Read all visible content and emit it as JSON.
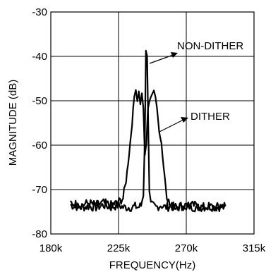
{
  "chart_data": {
    "type": "line",
    "title": "",
    "xlabel": "FREQUENCY(Hz)",
    "ylabel": "MAGNITUDE (dB)",
    "xlim": [
      180000,
      315000
    ],
    "ylim": [
      -80,
      -30
    ],
    "x_ticks": [
      180000,
      225000,
      270000,
      315000
    ],
    "x_tick_labels": [
      "180k",
      "225k",
      "270k",
      "315k"
    ],
    "y_ticks": [
      -80,
      -70,
      -60,
      -50,
      -40,
      -30
    ],
    "y_tick_labels": [
      "-80",
      "-70",
      "-60",
      "-50",
      "-40",
      "-30"
    ],
    "grid": true,
    "legend": "none",
    "series": [
      {
        "x": [
          193000,
          200000,
          205000,
          210000,
          215000,
          220000,
          225000,
          228000,
          231000,
          234000,
          236000,
          238000,
          240000,
          241500,
          242500,
          243200,
          244000,
          244800,
          245500,
          246500,
          248000,
          250000,
          253000,
          256000,
          260000,
          265000,
          270000,
          275000,
          280000,
          285000,
          290000,
          296000
        ],
        "y": [
          -73.5,
          -74,
          -73.8,
          -74,
          -73.5,
          -74,
          -73.5,
          -74,
          -74,
          -74,
          -73.8,
          -74,
          -73.6,
          -71,
          -58,
          -39,
          -39.5,
          -56,
          -71,
          -73.5,
          -73.7,
          -74,
          -73.5,
          -74,
          -73.8,
          -74,
          -73.5,
          -74,
          -74,
          -73.8,
          -74,
          -73.8
        ]
      },
      {
        "x": [
          193000,
          200000,
          205000,
          210000,
          215000,
          220000,
          224000,
          228000,
          230000,
          232000,
          234000,
          235500,
          236500,
          237500,
          238500,
          239500,
          240500,
          241500,
          242500,
          243500,
          244500,
          245500,
          246500,
          247500,
          248500,
          249500,
          250500,
          252000,
          253500,
          255000,
          257000,
          259000,
          262000,
          265000,
          270000,
          275000,
          280000,
          285000,
          290000,
          296000
        ],
        "y": [
          -73,
          -73.5,
          -73,
          -73.5,
          -73,
          -73.5,
          -73,
          -72,
          -68,
          -62,
          -55,
          -49,
          -47,
          -50,
          -47.5,
          -51,
          -48,
          -52,
          -62,
          -60,
          -52,
          -50,
          -49.5,
          -48,
          -47.5,
          -49,
          -52,
          -56.5,
          -59.5,
          -65,
          -71,
          -73.5,
          -74,
          -73.5,
          -74,
          -73.5,
          -74,
          -73.8,
          -74,
          -73.5
        ]
      }
    ],
    "annotations": [
      "NON-DITHER",
      "DITHER"
    ]
  }
}
